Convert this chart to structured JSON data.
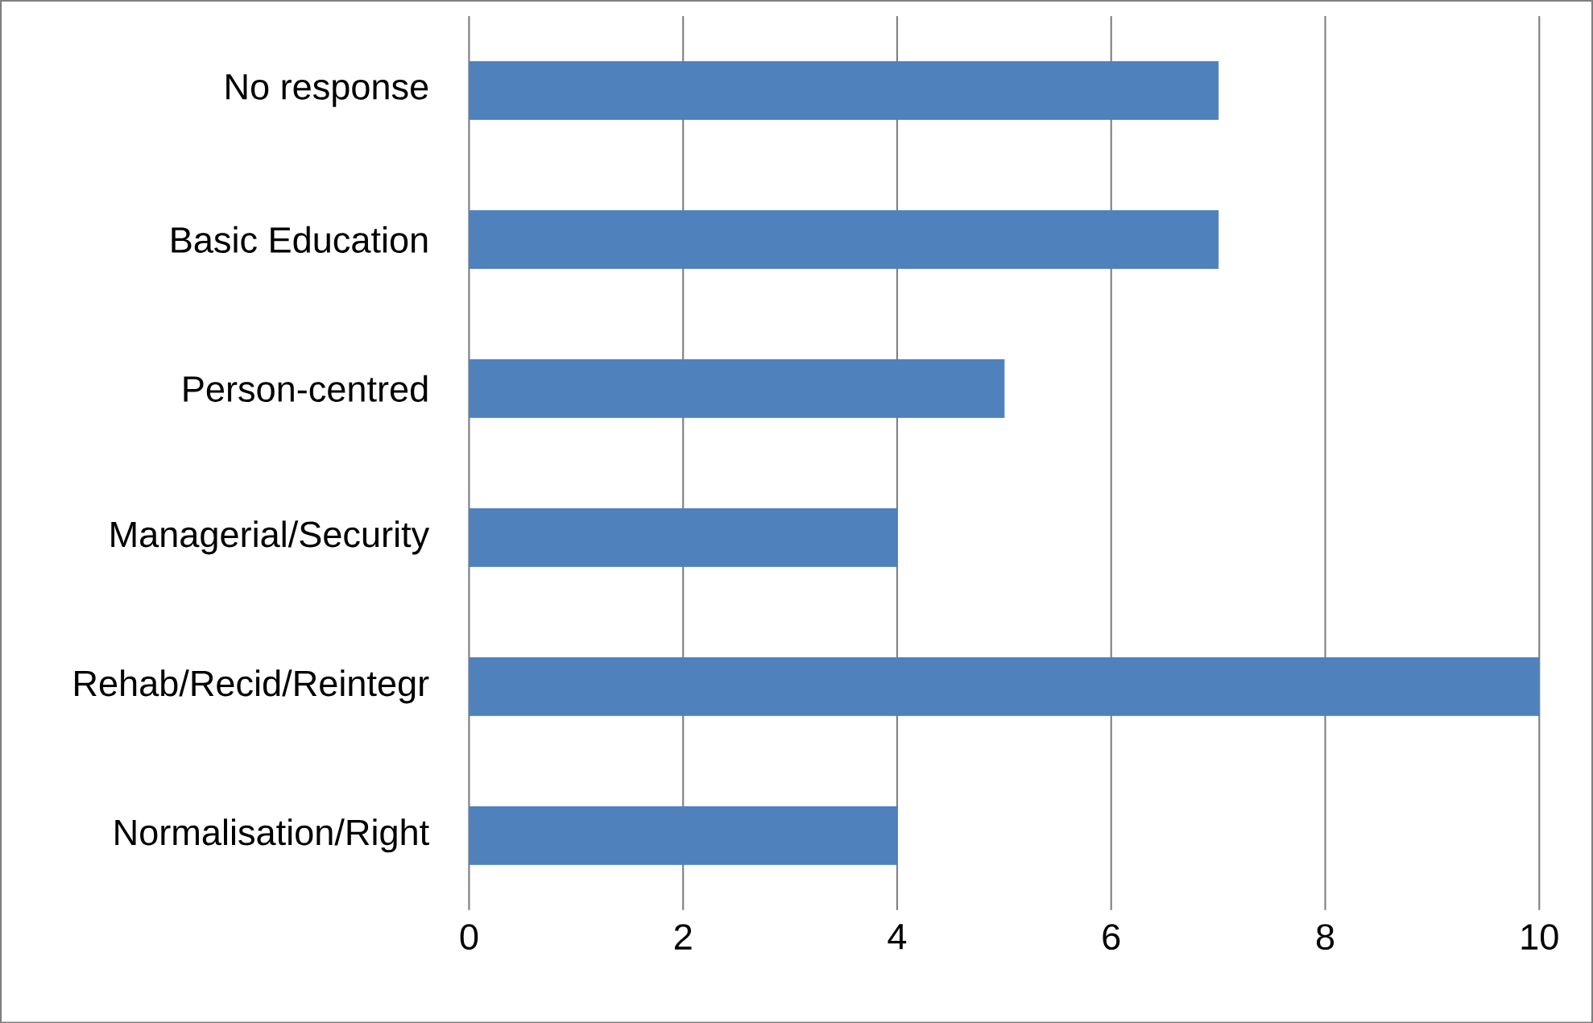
{
  "chart_data": {
    "type": "bar",
    "orientation": "horizontal",
    "categories": [
      "No response",
      "Basic Education",
      "Person-centred",
      "Managerial/Security",
      "Rehab/Recid/Reintegr",
      "Normalisation/Right"
    ],
    "values": [
      7,
      7,
      5,
      4,
      10,
      4
    ],
    "color": "#4f81bd",
    "xlim": [
      0,
      10
    ],
    "xticks": [
      0,
      2,
      4,
      6,
      8,
      10
    ],
    "grid": "x"
  }
}
